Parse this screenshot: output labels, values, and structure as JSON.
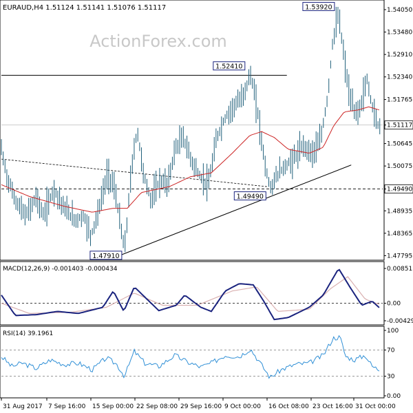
{
  "header": {
    "symbol_line": "EURAUD,H4  1.51124 1.51141 1.51076 1.51117"
  },
  "watermark": "ActionForex.com",
  "colors": {
    "candles": "#1f5f7a",
    "moving_average": "#cc2222",
    "macd_line": "#1a237e",
    "macd_signal": "#d9b0b0",
    "rsi_line": "#2f8fd6",
    "trendline": "#000000",
    "level_line": "#000000",
    "box_border": "#1a237e",
    "price_tag_bg": "#ffffff"
  },
  "price_panel": {
    "y_ticks": [
      "1.54050",
      "1.53480",
      "1.52910",
      "1.52340",
      "1.51765",
      "1.51117",
      "1.50645",
      "1.50075",
      "1.49490",
      "1.48935",
      "1.48365",
      "1.47795"
    ],
    "current_price": "1.51117",
    "horizontal_level": "1.49490",
    "annotations": [
      {
        "label": "1.53920"
      },
      {
        "label": "1.52410"
      },
      {
        "label": "1.49490"
      },
      {
        "label": "1.47910"
      }
    ]
  },
  "macd_panel": {
    "title": "MACD(12,26,9) -0.001403 -0.000434",
    "y_ticks": [
      "0.008517",
      "0.00",
      "-0.004296"
    ]
  },
  "rsi_panel": {
    "title": "RSI(14) 39.1961",
    "y_ticks": [
      "100",
      "70",
      "30",
      "0.00"
    ]
  },
  "x_axis": {
    "labels": [
      "31 Aug 2017",
      "7 Sep 16:00",
      "15 Sep 00:00",
      "22 Sep 08:00",
      "29 Sep 16:00",
      "9 Oct 00:00",
      "16 Oct 08:00",
      "23 Oct 16:00",
      "31 Oct 00:00"
    ]
  },
  "chart_data": {
    "type": "line",
    "price_axis_range": [
      1.4775,
      1.5405
    ],
    "price_path": [
      {
        "t": 0,
        "close": 1.505
      },
      {
        "t": 8,
        "close": 1.498
      },
      {
        "t": 20,
        "close": 1.492
      },
      {
        "t": 35,
        "close": 1.488
      },
      {
        "t": 50,
        "close": 1.493
      },
      {
        "t": 60,
        "close": 1.488
      },
      {
        "t": 75,
        "close": 1.495
      },
      {
        "t": 90,
        "close": 1.49
      },
      {
        "t": 105,
        "close": 1.487
      },
      {
        "t": 118,
        "close": 1.488
      },
      {
        "t": 128,
        "close": 1.483
      },
      {
        "t": 140,
        "close": 1.49
      },
      {
        "t": 152,
        "close": 1.499
      },
      {
        "t": 162,
        "close": 1.495
      },
      {
        "t": 170,
        "close": 1.486
      },
      {
        "t": 176,
        "close": 1.4791
      },
      {
        "t": 186,
        "close": 1.5
      },
      {
        "t": 194,
        "close": 1.51
      },
      {
        "t": 204,
        "close": 1.498
      },
      {
        "t": 214,
        "close": 1.492
      },
      {
        "t": 226,
        "close": 1.497
      },
      {
        "t": 238,
        "close": 1.496
      },
      {
        "t": 248,
        "close": 1.505
      },
      {
        "t": 260,
        "close": 1.508
      },
      {
        "t": 272,
        "close": 1.502
      },
      {
        "t": 284,
        "close": 1.498
      },
      {
        "t": 296,
        "close": 1.496
      },
      {
        "t": 308,
        "close": 1.508
      },
      {
        "t": 320,
        "close": 1.513
      },
      {
        "t": 332,
        "close": 1.516
      },
      {
        "t": 344,
        "close": 1.518
      },
      {
        "t": 356,
        "close": 1.5241
      },
      {
        "t": 366,
        "close": 1.515
      },
      {
        "t": 376,
        "close": 1.502
      },
      {
        "t": 384,
        "close": 1.4949
      },
      {
        "t": 396,
        "close": 1.499
      },
      {
        "t": 408,
        "close": 1.501
      },
      {
        "t": 420,
        "close": 1.503
      },
      {
        "t": 432,
        "close": 1.506
      },
      {
        "t": 444,
        "close": 1.504
      },
      {
        "t": 456,
        "close": 1.507
      },
      {
        "t": 466,
        "close": 1.518
      },
      {
        "t": 474,
        "close": 1.533
      },
      {
        "t": 482,
        "close": 1.5392
      },
      {
        "t": 490,
        "close": 1.528
      },
      {
        "t": 498,
        "close": 1.518
      },
      {
        "t": 506,
        "close": 1.514
      },
      {
        "t": 514,
        "close": 1.516
      },
      {
        "t": 522,
        "close": 1.523
      },
      {
        "t": 530,
        "close": 1.516
      },
      {
        "t": 538,
        "close": 1.5112
      }
    ],
    "moving_average": [
      {
        "t": 0,
        "v": 1.496
      },
      {
        "t": 40,
        "v": 1.493
      },
      {
        "t": 90,
        "v": 1.4905
      },
      {
        "t": 130,
        "v": 1.489
      },
      {
        "t": 160,
        "v": 1.49
      },
      {
        "t": 180,
        "v": 1.49
      },
      {
        "t": 200,
        "v": 1.494
      },
      {
        "t": 240,
        "v": 1.4955
      },
      {
        "t": 270,
        "v": 1.498
      },
      {
        "t": 300,
        "v": 1.499
      },
      {
        "t": 330,
        "v": 1.504
      },
      {
        "t": 355,
        "v": 1.5085
      },
      {
        "t": 372,
        "v": 1.5095
      },
      {
        "t": 390,
        "v": 1.508
      },
      {
        "t": 410,
        "v": 1.505
      },
      {
        "t": 440,
        "v": 1.504
      },
      {
        "t": 460,
        "v": 1.5055
      },
      {
        "t": 475,
        "v": 1.511
      },
      {
        "t": 490,
        "v": 1.5145
      },
      {
        "t": 510,
        "v": 1.515
      },
      {
        "t": 525,
        "v": 1.5158
      },
      {
        "t": 540,
        "v": 1.515
      }
    ],
    "macd_range": [
      -0.004296,
      0.008517
    ],
    "macd_line": [
      {
        "t": 0,
        "v": 0.002
      },
      {
        "t": 20,
        "v": -0.003
      },
      {
        "t": 50,
        "v": -0.0028
      },
      {
        "t": 80,
        "v": -0.002
      },
      {
        "t": 110,
        "v": -0.0025
      },
      {
        "t": 145,
        "v": -0.001
      },
      {
        "t": 160,
        "v": 0.003
      },
      {
        "t": 175,
        "v": -0.002
      },
      {
        "t": 190,
        "v": 0.004
      },
      {
        "t": 205,
        "v": 0.0015
      },
      {
        "t": 225,
        "v": -0.0018
      },
      {
        "t": 250,
        "v": -0.0005
      },
      {
        "t": 262,
        "v": 0.002
      },
      {
        "t": 285,
        "v": -0.001
      },
      {
        "t": 300,
        "v": -0.002
      },
      {
        "t": 320,
        "v": 0.003
      },
      {
        "t": 340,
        "v": 0.0048
      },
      {
        "t": 360,
        "v": 0.0045
      },
      {
        "t": 375,
        "v": 0.0005
      },
      {
        "t": 390,
        "v": -0.004
      },
      {
        "t": 410,
        "v": -0.0035
      },
      {
        "t": 440,
        "v": -0.001
      },
      {
        "t": 460,
        "v": 0.002
      },
      {
        "t": 482,
        "v": 0.0085
      },
      {
        "t": 498,
        "v": 0.004
      },
      {
        "t": 515,
        "v": -0.0005
      },
      {
        "t": 530,
        "v": 0.0005
      },
      {
        "t": 542,
        "v": -0.0014
      }
    ],
    "macd_signal": [
      {
        "t": 0,
        "v": 0.0
      },
      {
        "t": 40,
        "v": -0.0025
      },
      {
        "t": 100,
        "v": -0.0022
      },
      {
        "t": 150,
        "v": -0.001
      },
      {
        "t": 190,
        "v": 0.0025
      },
      {
        "t": 230,
        "v": -0.0005
      },
      {
        "t": 280,
        "v": -0.0005
      },
      {
        "t": 330,
        "v": 0.003
      },
      {
        "t": 365,
        "v": 0.004
      },
      {
        "t": 395,
        "v": -0.002
      },
      {
        "t": 440,
        "v": -0.0015
      },
      {
        "t": 470,
        "v": 0.0035
      },
      {
        "t": 495,
        "v": 0.0065
      },
      {
        "t": 520,
        "v": 0.001
      },
      {
        "t": 542,
        "v": -0.0004
      }
    ],
    "rsi_line": [
      {
        "t": 0,
        "v": 60
      },
      {
        "t": 15,
        "v": 45
      },
      {
        "t": 30,
        "v": 50
      },
      {
        "t": 50,
        "v": 42
      },
      {
        "t": 70,
        "v": 55
      },
      {
        "t": 90,
        "v": 48
      },
      {
        "t": 110,
        "v": 50
      },
      {
        "t": 130,
        "v": 40
      },
      {
        "t": 150,
        "v": 58
      },
      {
        "t": 165,
        "v": 48
      },
      {
        "t": 176,
        "v": 30
      },
      {
        "t": 190,
        "v": 68
      },
      {
        "t": 205,
        "v": 50
      },
      {
        "t": 225,
        "v": 45
      },
      {
        "t": 248,
        "v": 62
      },
      {
        "t": 265,
        "v": 52
      },
      {
        "t": 285,
        "v": 44
      },
      {
        "t": 300,
        "v": 50
      },
      {
        "t": 320,
        "v": 62
      },
      {
        "t": 340,
        "v": 60
      },
      {
        "t": 356,
        "v": 72
      },
      {
        "t": 370,
        "v": 50
      },
      {
        "t": 384,
        "v": 28
      },
      {
        "t": 400,
        "v": 40
      },
      {
        "t": 420,
        "v": 48
      },
      {
        "t": 440,
        "v": 50
      },
      {
        "t": 460,
        "v": 62
      },
      {
        "t": 474,
        "v": 88
      },
      {
        "t": 484,
        "v": 90
      },
      {
        "t": 492,
        "v": 60
      },
      {
        "t": 505,
        "v": 55
      },
      {
        "t": 520,
        "v": 62
      },
      {
        "t": 530,
        "v": 45
      },
      {
        "t": 542,
        "v": 39
      }
    ],
    "rsi_range": [
      0,
      100
    ]
  }
}
